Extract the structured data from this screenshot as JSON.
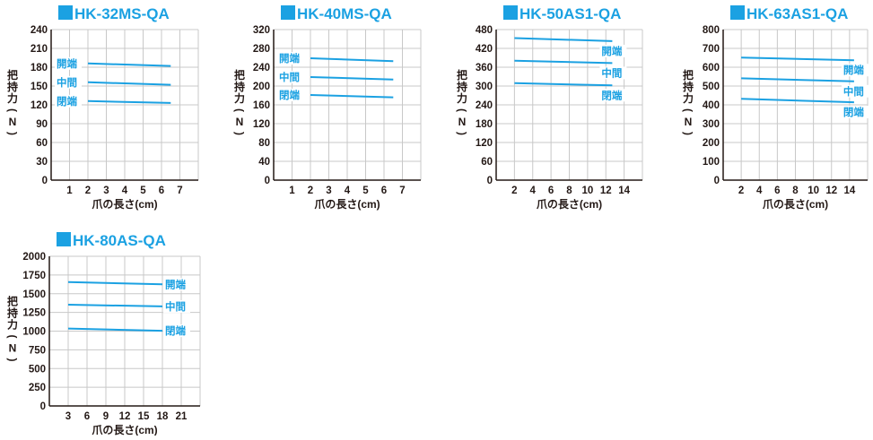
{
  "theme": {
    "accent": "#1ba1e2",
    "grid": "#c8c8c8",
    "axis": "#231815"
  },
  "series_names": [
    "開端",
    "中間",
    "閉端"
  ],
  "ylabel": "把持力(N)",
  "xlabel": "爪の長さ(cm)",
  "chart_data": [
    {
      "type": "line",
      "title": "HK-32MS-QA",
      "xlabel": "爪の長さ(cm)",
      "ylabel": "把持力(N)",
      "xlim": [
        0,
        8
      ],
      "xticks": [
        1,
        2,
        3,
        4,
        5,
        6,
        7
      ],
      "ylim": [
        0,
        240
      ],
      "yticks": [
        0,
        30,
        60,
        90,
        120,
        150,
        180,
        210,
        240
      ],
      "grid": true,
      "series": [
        {
          "name": "開端",
          "x": [
            2,
            6.5
          ],
          "y": [
            186,
            182
          ]
        },
        {
          "name": "中間",
          "x": [
            2,
            6.5
          ],
          "y": [
            156,
            152
          ]
        },
        {
          "name": "閉端",
          "x": [
            2,
            6.5
          ],
          "y": [
            126,
            123
          ]
        }
      ]
    },
    {
      "type": "line",
      "title": "HK-40MS-QA",
      "xlabel": "爪の長さ(cm)",
      "ylabel": "把持力(N)",
      "xlim": [
        0,
        8
      ],
      "xticks": [
        1,
        2,
        3,
        4,
        5,
        6,
        7
      ],
      "ylim": [
        0,
        320
      ],
      "yticks": [
        0,
        40,
        80,
        120,
        160,
        200,
        240,
        280,
        320
      ],
      "grid": true,
      "series": [
        {
          "name": "開端",
          "x": [
            2,
            6.5
          ],
          "y": [
            259,
            253
          ]
        },
        {
          "name": "中間",
          "x": [
            2,
            6.5
          ],
          "y": [
            219,
            214
          ]
        },
        {
          "name": "閉端",
          "x": [
            2,
            6.5
          ],
          "y": [
            181,
            176
          ]
        }
      ]
    },
    {
      "type": "line",
      "title": "HK-50AS1-QA",
      "xlabel": "爪の長さ(cm)",
      "ylabel": "把持力(N)",
      "xlim": [
        0,
        16
      ],
      "xticks": [
        2,
        4,
        6,
        8,
        10,
        12,
        14
      ],
      "ylim": [
        0,
        480
      ],
      "yticks": [
        0,
        60,
        120,
        180,
        240,
        300,
        360,
        420,
        480
      ],
      "grid": true,
      "series": [
        {
          "name": "開端",
          "x": [
            2,
            12.7
          ],
          "y": [
            453,
            443
          ]
        },
        {
          "name": "中間",
          "x": [
            2,
            12.7
          ],
          "y": [
            381,
            373
          ]
        },
        {
          "name": "閉端",
          "x": [
            2,
            12.7
          ],
          "y": [
            309,
            302
          ]
        }
      ]
    },
    {
      "type": "line",
      "title": "HK-63AS1-QA",
      "xlabel": "爪の長さ(cm)",
      "ylabel": "把持力(N)",
      "xlim": [
        0,
        16
      ],
      "xticks": [
        2,
        4,
        6,
        8,
        10,
        12,
        14
      ],
      "ylim": [
        0,
        800
      ],
      "yticks": [
        0,
        100,
        200,
        300,
        400,
        500,
        600,
        700,
        800
      ],
      "grid": true,
      "series": [
        {
          "name": "開端",
          "x": [
            2,
            14.5
          ],
          "y": [
            651,
            637
          ]
        },
        {
          "name": "中間",
          "x": [
            2,
            14.5
          ],
          "y": [
            541,
            525
          ]
        },
        {
          "name": "閉端",
          "x": [
            2,
            14.5
          ],
          "y": [
            432,
            414
          ]
        }
      ]
    },
    {
      "type": "line",
      "title": "HK-80AS-QA",
      "xlabel": "爪の長さ(cm)",
      "ylabel": "把持力(N)",
      "xlim": [
        0,
        24
      ],
      "xticks": [
        3,
        6,
        9,
        12,
        15,
        18,
        21
      ],
      "ylim": [
        0,
        2000
      ],
      "yticks": [
        0,
        250,
        500,
        750,
        1000,
        1250,
        1500,
        1750,
        2000
      ],
      "grid": true,
      "series": [
        {
          "name": "開端",
          "x": [
            3,
            18
          ],
          "y": [
            1655,
            1625
          ]
        },
        {
          "name": "中間",
          "x": [
            3,
            18
          ],
          "y": [
            1353,
            1330
          ]
        },
        {
          "name": "閉端",
          "x": [
            3,
            18
          ],
          "y": [
            1035,
            1005
          ]
        }
      ]
    }
  ]
}
